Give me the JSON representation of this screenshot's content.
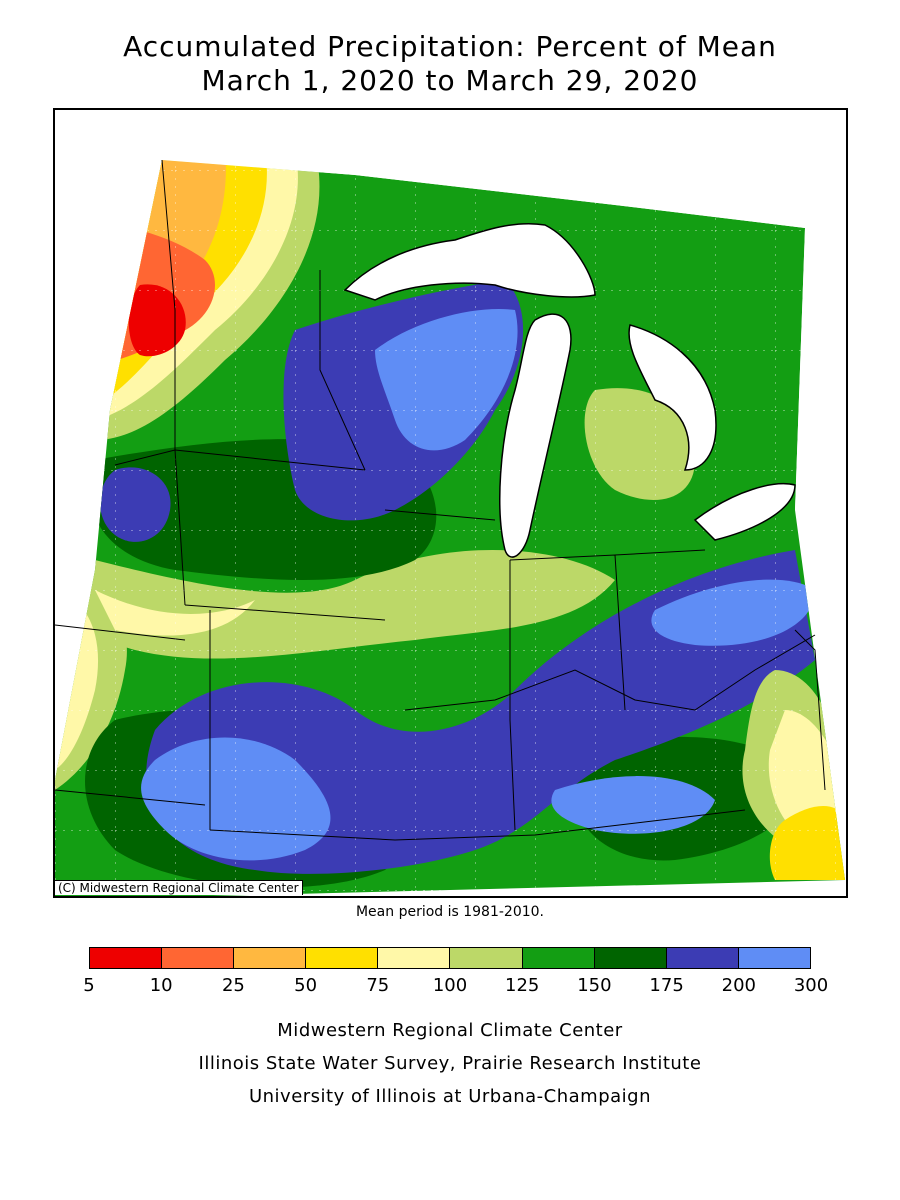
{
  "title": {
    "line1": "Accumulated Precipitation: Percent of Mean",
    "line2": "March 1, 2020 to March 29, 2020"
  },
  "map": {
    "copyright": "(C) Midwestern Regional Climate Center",
    "mean_note": "Mean period is 1981-2010.",
    "regions_dominant": [
      {
        "area": "northwest Minnesota",
        "range": "5-10",
        "color": "#ee0000"
      },
      {
        "area": "west Minnesota",
        "range": "10-50",
        "color": "#ff6633"
      },
      {
        "area": "Wisconsin / Lower Michigan",
        "range": "175-300",
        "color": "#5b86f0"
      },
      {
        "area": "Missouri / Illinois / Kentucky",
        "range": "175-300",
        "color": "#3a3aba"
      },
      {
        "area": "eastern Ohio / West Virginia",
        "range": "50-100",
        "color": "#ffeb00"
      }
    ]
  },
  "legend": {
    "colors": [
      "#ee0000",
      "#ff6633",
      "#ffb840",
      "#ffe000",
      "#fff8a8",
      "#bcd868",
      "#139e13",
      "#006400",
      "#3c3cb4",
      "#5f8df5"
    ],
    "ticks": [
      "5",
      "10",
      "25",
      "50",
      "75",
      "100",
      "125",
      "150",
      "175",
      "200",
      "300"
    ]
  },
  "credits": {
    "line1": "Midwestern Regional Climate Center",
    "line2": "Illinois State Water Survey, Prairie Research Institute",
    "line3": "University of Illinois at Urbana-Champaign"
  }
}
